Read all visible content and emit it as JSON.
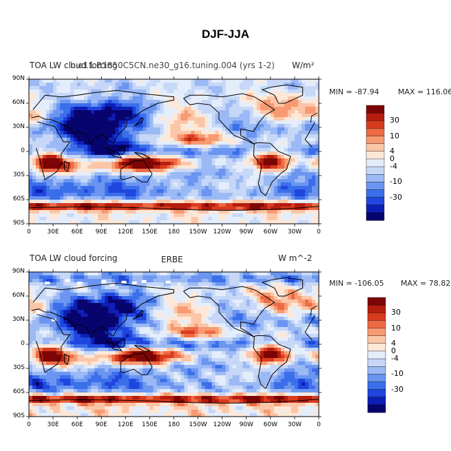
{
  "page_title": "DJF-JJA",
  "colors": {
    "scale": [
      "#08046e",
      "#0d1fb5",
      "#1f46de",
      "#3b6fea",
      "#6b95f0",
      "#9bb9f4",
      "#c6d7f7",
      "#e4edfb",
      "#fde8d8",
      "#fbc6a8",
      "#f79a72",
      "#ee6a44",
      "#d83c1f",
      "#b51d0e",
      "#7d0505"
    ],
    "land_outline": "#000000"
  },
  "panels": [
    {
      "id": "model",
      "title_left": "TOA LW cloud forcing",
      "title_center": "b.e11.B1850C5CN.ne30_g16.tuning.004 (yrs 1-2)",
      "title_right": "W/m^2",
      "title_right_display": "W/m²",
      "min_label": "MIN = -87.94",
      "max_label": "MAX = 116.06",
      "min": -87.94,
      "max": 116.06,
      "has_missing": false
    },
    {
      "id": "obs",
      "title_left": "TOA LW cloud forcing",
      "title_center": "ERBE",
      "title_right": "W m^-2",
      "min_label": "MIN = -106.05",
      "max_label": "MAX =  78.82",
      "min": -106.05,
      "max": 78.82,
      "has_missing": true
    }
  ],
  "axes": {
    "lat_labels": [
      "90N",
      "60N",
      "30N",
      "0",
      "30S",
      "60S",
      "90S"
    ],
    "lon_labels": [
      "0",
      "30E",
      "60E",
      "90E",
      "120E",
      "150E",
      "180",
      "150W",
      "120W",
      "90W",
      "60W",
      "30W",
      "0"
    ]
  },
  "colorbar": {
    "tick_labels": [
      "30",
      "10",
      "4",
      "0",
      "-4",
      "-10",
      "-30"
    ]
  }
}
